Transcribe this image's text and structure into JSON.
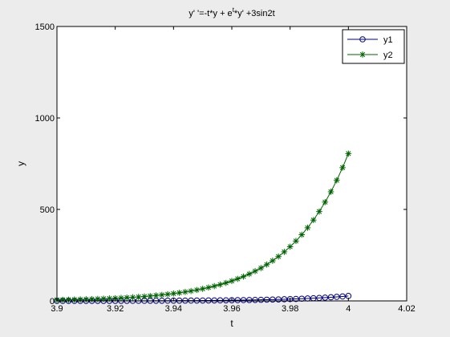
{
  "chart_data": {
    "type": "line",
    "title_parts": [
      "y' '=-t*y + e",
      "t",
      "*y' +3sin2t"
    ],
    "xlabel": "t",
    "ylabel": "y",
    "xlim": [
      3.9,
      4.02
    ],
    "ylim": [
      0,
      1500
    ],
    "xticks": [
      3.9,
      3.92,
      3.94,
      3.96,
      3.98,
      4,
      4.02
    ],
    "xtick_labels": [
      "3.9",
      "3.92",
      "3.94",
      "3.96",
      "3.98",
      "4",
      "4.02"
    ],
    "yticks": [
      0,
      500,
      1000,
      1500
    ],
    "ytick_labels": [
      "0",
      "500",
      "1000",
      "1500"
    ],
    "grid": false,
    "legend_position": "top-right",
    "x": [
      3.9,
      3.902,
      3.904,
      3.906,
      3.908,
      3.91,
      3.912,
      3.914,
      3.916,
      3.918,
      3.92,
      3.922,
      3.924,
      3.926,
      3.928,
      3.93,
      3.932,
      3.934,
      3.936,
      3.938,
      3.94,
      3.942,
      3.944,
      3.946,
      3.948,
      3.95,
      3.952,
      3.954,
      3.956,
      3.958,
      3.96,
      3.962,
      3.964,
      3.966,
      3.968,
      3.97,
      3.972,
      3.974,
      3.976,
      3.978,
      3.98,
      3.982,
      3.984,
      3.986,
      3.988,
      3.99,
      3.992,
      3.994,
      3.996,
      3.998,
      4.0
    ],
    "series": [
      {
        "name": "y1",
        "color": "#000080",
        "marker": "circle",
        "values": [
          0.1,
          0.1,
          0.2,
          0.2,
          0.2,
          0.2,
          0.3,
          0.3,
          0.3,
          0.4,
          0.4,
          0.5,
          0.5,
          0.6,
          0.7,
          0.7,
          0.8,
          0.9,
          1.0,
          1.1,
          1.3,
          1.4,
          1.6,
          1.7,
          1.9,
          2.1,
          2.4,
          2.6,
          2.9,
          3.2,
          3.6,
          4.0,
          4.4,
          4.9,
          5.4,
          6.0,
          6.6,
          7.3,
          8.1,
          8.9,
          9.9,
          10.9,
          12.1,
          13.3,
          14.8,
          16.3,
          18.0,
          19.9,
          22.0,
          24.3,
          27.0
        ]
      },
      {
        "name": "y2",
        "color": "#006400",
        "marker": "star",
        "values": [
          5.4,
          6.0,
          6.6,
          7.3,
          8.1,
          8.9,
          9.9,
          10.9,
          12.1,
          13.3,
          14.8,
          16.3,
          18.0,
          19.9,
          22.0,
          24.3,
          26.9,
          29.7,
          32.8,
          36.3,
          40.1,
          44.3,
          49.0,
          54.1,
          59.8,
          66.1,
          73.1,
          80.8,
          89.2,
          98.6,
          109.0,
          120.5,
          133.1,
          147.1,
          162.6,
          179.7,
          198.6,
          219.5,
          242.5,
          268.0,
          296.2,
          327.4,
          361.8,
          399.9,
          441.9,
          488.4,
          539.8,
          596.6,
          659.3,
          728.6,
          805.3
        ]
      }
    ]
  }
}
